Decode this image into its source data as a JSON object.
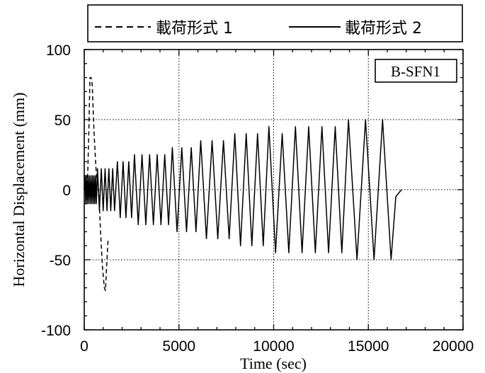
{
  "chart_data": {
    "type": "line",
    "xlabel": "Time (sec)",
    "ylabel": "Horizontal Displacement (mm)",
    "xlim": [
      0,
      20000
    ],
    "ylim": [
      -100,
      100
    ],
    "x_ticks": [
      "0",
      "5000",
      "10000",
      "15000",
      "20000"
    ],
    "y_ticks": [
      "100",
      "50",
      "0",
      "-50",
      "-100"
    ],
    "grid": true,
    "annotation": "B-SFN1",
    "legend": {
      "placement": "top, above plot"
    },
    "series": [
      {
        "name": "載荷形式 1",
        "style": "dashed",
        "color": "#000000",
        "points": [
          [
            0,
            0
          ],
          [
            60,
            8
          ],
          [
            120,
            -8
          ],
          [
            180,
            10
          ],
          [
            240,
            40
          ],
          [
            300,
            80
          ],
          [
            360,
            80
          ],
          [
            420,
            75
          ],
          [
            520,
            40
          ],
          [
            620,
            15
          ],
          [
            700,
            5
          ],
          [
            780,
            -5
          ],
          [
            860,
            -30
          ],
          [
            960,
            -55
          ],
          [
            1060,
            -70
          ],
          [
            1120,
            -72
          ],
          [
            1180,
            -55
          ],
          [
            1260,
            -35
          ]
        ]
      },
      {
        "name": "載荷形式 2",
        "style": "solid",
        "color": "#000000",
        "points": [
          [
            0,
            0
          ],
          [
            40,
            10
          ],
          [
            80,
            -10
          ],
          [
            120,
            10
          ],
          [
            160,
            -10
          ],
          [
            200,
            10
          ],
          [
            240,
            -10
          ],
          [
            280,
            10
          ],
          [
            320,
            -10
          ],
          [
            360,
            10
          ],
          [
            400,
            -10
          ],
          [
            440,
            10
          ],
          [
            480,
            -10
          ],
          [
            520,
            10
          ],
          [
            560,
            -10
          ],
          [
            600,
            10
          ],
          [
            640,
            -10
          ],
          [
            700,
            15
          ],
          [
            800,
            -15
          ],
          [
            900,
            15
          ],
          [
            1000,
            -15
          ],
          [
            1100,
            15
          ],
          [
            1200,
            -15
          ],
          [
            1300,
            15
          ],
          [
            1400,
            -15
          ],
          [
            1500,
            15
          ],
          [
            1600,
            -15
          ],
          [
            1750,
            20
          ],
          [
            1900,
            -20
          ],
          [
            2050,
            20
          ],
          [
            2200,
            -20
          ],
          [
            2350,
            20
          ],
          [
            2500,
            -20
          ],
          [
            2650,
            25
          ],
          [
            2850,
            -25
          ],
          [
            3050,
            25
          ],
          [
            3250,
            -25
          ],
          [
            3450,
            25
          ],
          [
            3650,
            -25
          ],
          [
            3850,
            25
          ],
          [
            4050,
            -25
          ],
          [
            4250,
            25
          ],
          [
            4450,
            -25
          ],
          [
            4650,
            30
          ],
          [
            4900,
            -30
          ],
          [
            5150,
            30
          ],
          [
            5400,
            -30
          ],
          [
            5650,
            30
          ],
          [
            5900,
            -30
          ],
          [
            6150,
            35
          ],
          [
            6450,
            -35
          ],
          [
            6750,
            35
          ],
          [
            7050,
            -35
          ],
          [
            7350,
            35
          ],
          [
            7650,
            -35
          ],
          [
            7950,
            40
          ],
          [
            8250,
            -40
          ],
          [
            8550,
            40
          ],
          [
            8850,
            -40
          ],
          [
            9150,
            40
          ],
          [
            9450,
            -40
          ],
          [
            9750,
            45
          ],
          [
            10100,
            -45
          ],
          [
            10450,
            40
          ],
          [
            10800,
            -45
          ],
          [
            11150,
            45
          ],
          [
            11500,
            -45
          ],
          [
            11850,
            45
          ],
          [
            12200,
            -45
          ],
          [
            12550,
            45
          ],
          [
            12900,
            -45
          ],
          [
            13250,
            45
          ],
          [
            13600,
            -45
          ],
          [
            13950,
            50
          ],
          [
            14400,
            -50
          ],
          [
            14850,
            50
          ],
          [
            15300,
            -50
          ],
          [
            15750,
            50
          ],
          [
            16200,
            -50
          ],
          [
            16450,
            -5
          ],
          [
            16750,
            0
          ]
        ]
      }
    ]
  }
}
